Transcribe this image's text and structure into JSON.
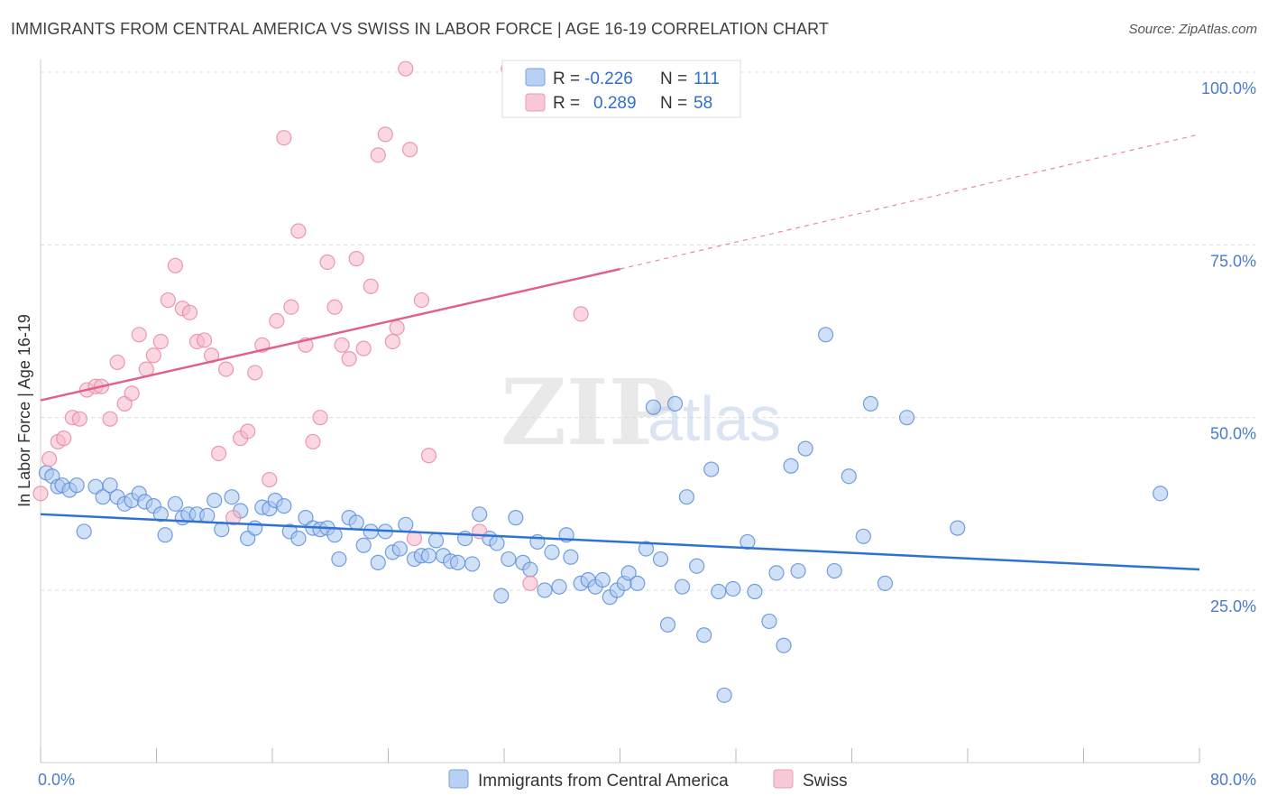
{
  "header": {
    "title": "IMMIGRANTS FROM CENTRAL AMERICA VS SWISS IN LABOR FORCE | AGE 16-19 CORRELATION CHART",
    "source": "Source: ZipAtlas.com"
  },
  "watermark": {
    "zip": "ZIP",
    "atlas": "atlas"
  },
  "chart_data": {
    "type": "scatter",
    "title": "IMMIGRANTS FROM CENTRAL AMERICA VS SWISS IN LABOR FORCE | AGE 16-19 CORRELATION CHART",
    "xlabel": "",
    "ylabel": "In Labor Force | Age 16-19",
    "xlim": [
      0,
      80
    ],
    "ylim": [
      0,
      102
    ],
    "x_tick_labels": {
      "min": "0.0%",
      "max": "80.0%"
    },
    "y_ticks": [
      {
        "value": 25,
        "label": "25.0%"
      },
      {
        "value": 50,
        "label": "50.0%"
      },
      {
        "value": 75,
        "label": "75.0%"
      },
      {
        "value": 100,
        "label": "100.0%"
      }
    ],
    "grid": true,
    "legend_position": "top-center",
    "series": [
      {
        "name": "Immigrants from Central America",
        "color": "#5b8fd9",
        "fill": "#a9c6f0",
        "r_label": "R =",
        "r_value": "-0.226",
        "n_label": "N =",
        "n_value": "111",
        "trend": {
          "x0": 0,
          "y0": 36.0,
          "x1": 80,
          "y1": 28.0,
          "dashed_to": 80
        },
        "points": [
          [
            0.4,
            42.0
          ],
          [
            0.8,
            41.5
          ],
          [
            1.2,
            40.0
          ],
          [
            1.5,
            40.2
          ],
          [
            2.0,
            39.5
          ],
          [
            2.5,
            40.2
          ],
          [
            3.0,
            33.5
          ],
          [
            3.8,
            40.0
          ],
          [
            4.3,
            38.5
          ],
          [
            4.8,
            40.2
          ],
          [
            5.3,
            38.5
          ],
          [
            5.8,
            37.5
          ],
          [
            6.3,
            38.0
          ],
          [
            6.8,
            39.0
          ],
          [
            7.2,
            37.8
          ],
          [
            7.8,
            37.2
          ],
          [
            8.3,
            36.0
          ],
          [
            8.6,
            33.0
          ],
          [
            9.3,
            37.5
          ],
          [
            9.8,
            35.5
          ],
          [
            10.2,
            36.0
          ],
          [
            10.8,
            36.0
          ],
          [
            11.5,
            35.8
          ],
          [
            12.0,
            38.0
          ],
          [
            12.5,
            33.8
          ],
          [
            13.2,
            38.5
          ],
          [
            13.8,
            36.5
          ],
          [
            14.3,
            32.5
          ],
          [
            14.8,
            34.0
          ],
          [
            15.3,
            37.0
          ],
          [
            15.8,
            36.8
          ],
          [
            16.2,
            38.0
          ],
          [
            16.8,
            37.2
          ],
          [
            17.2,
            33.5
          ],
          [
            17.8,
            32.5
          ],
          [
            18.3,
            35.5
          ],
          [
            18.8,
            34.0
          ],
          [
            19.3,
            33.8
          ],
          [
            19.8,
            34.0
          ],
          [
            20.3,
            33.0
          ],
          [
            20.6,
            29.5
          ],
          [
            21.3,
            35.5
          ],
          [
            21.8,
            34.8
          ],
          [
            22.3,
            31.5
          ],
          [
            22.8,
            33.5
          ],
          [
            23.3,
            29.0
          ],
          [
            23.8,
            33.5
          ],
          [
            24.3,
            30.5
          ],
          [
            24.8,
            31.0
          ],
          [
            25.2,
            34.5
          ],
          [
            25.8,
            29.5
          ],
          [
            26.3,
            30.0
          ],
          [
            26.8,
            30.0
          ],
          [
            27.3,
            32.2
          ],
          [
            27.8,
            30.0
          ],
          [
            28.3,
            29.2
          ],
          [
            28.8,
            29.0
          ],
          [
            29.3,
            32.5
          ],
          [
            29.8,
            28.8
          ],
          [
            30.3,
            36.0
          ],
          [
            31.0,
            32.5
          ],
          [
            31.5,
            31.8
          ],
          [
            31.8,
            24.2
          ],
          [
            32.3,
            29.5
          ],
          [
            32.8,
            35.5
          ],
          [
            33.3,
            29.0
          ],
          [
            33.8,
            28.0
          ],
          [
            34.3,
            32.0
          ],
          [
            34.8,
            25.0
          ],
          [
            35.3,
            30.5
          ],
          [
            35.8,
            25.5
          ],
          [
            36.3,
            33.0
          ],
          [
            36.6,
            29.8
          ],
          [
            37.3,
            26.0
          ],
          [
            37.8,
            26.5
          ],
          [
            38.3,
            25.5
          ],
          [
            38.8,
            26.5
          ],
          [
            39.3,
            24.0
          ],
          [
            39.8,
            25.0
          ],
          [
            40.3,
            26.0
          ],
          [
            40.6,
            27.5
          ],
          [
            41.2,
            26.0
          ],
          [
            41.8,
            31.0
          ],
          [
            42.3,
            51.5
          ],
          [
            42.8,
            29.5
          ],
          [
            43.3,
            20.0
          ],
          [
            43.8,
            52.0
          ],
          [
            44.3,
            25.5
          ],
          [
            44.6,
            38.5
          ],
          [
            45.3,
            28.5
          ],
          [
            45.8,
            18.5
          ],
          [
            46.3,
            42.5
          ],
          [
            46.8,
            24.8
          ],
          [
            47.2,
            9.8
          ],
          [
            47.8,
            25.2
          ],
          [
            48.8,
            32.0
          ],
          [
            49.3,
            24.8
          ],
          [
            50.3,
            20.5
          ],
          [
            50.8,
            27.5
          ],
          [
            51.3,
            17.0
          ],
          [
            51.8,
            43.0
          ],
          [
            52.3,
            27.8
          ],
          [
            52.8,
            45.5
          ],
          [
            54.2,
            62.0
          ],
          [
            54.8,
            27.8
          ],
          [
            55.8,
            41.5
          ],
          [
            56.8,
            32.8
          ],
          [
            57.3,
            52.0
          ],
          [
            58.3,
            26.0
          ],
          [
            59.8,
            50.0
          ],
          [
            63.3,
            34.0
          ],
          [
            77.3,
            39.0
          ]
        ]
      },
      {
        "name": "Swiss",
        "color": "#e68aa6",
        "fill": "#f5b6c8",
        "r_label": "R =",
        "r_value": "0.289",
        "n_label": "N =",
        "n_value": "58",
        "trend": {
          "x0": 0,
          "y0": 52.5,
          "x1": 40,
          "y1": 71.5,
          "dashed_to": 80,
          "dashed_y_end": 91.0
        },
        "points": [
          [
            0.0,
            39.0
          ],
          [
            0.6,
            44.0
          ],
          [
            1.2,
            46.5
          ],
          [
            1.6,
            47.0
          ],
          [
            2.2,
            50.0
          ],
          [
            2.7,
            49.8
          ],
          [
            3.2,
            54.0
          ],
          [
            3.8,
            54.5
          ],
          [
            4.2,
            54.5
          ],
          [
            4.8,
            49.8
          ],
          [
            5.3,
            58.0
          ],
          [
            5.8,
            52.0
          ],
          [
            6.3,
            53.5
          ],
          [
            6.8,
            62.0
          ],
          [
            7.3,
            57.0
          ],
          [
            7.8,
            59.0
          ],
          [
            8.3,
            61.0
          ],
          [
            8.8,
            67.0
          ],
          [
            9.3,
            72.0
          ],
          [
            9.8,
            65.8
          ],
          [
            10.3,
            65.2
          ],
          [
            10.8,
            61.0
          ],
          [
            11.3,
            61.2
          ],
          [
            11.8,
            59.0
          ],
          [
            12.3,
            44.8
          ],
          [
            12.8,
            57.0
          ],
          [
            13.3,
            35.5
          ],
          [
            13.8,
            47.0
          ],
          [
            14.3,
            48.0
          ],
          [
            14.8,
            56.5
          ],
          [
            15.3,
            60.5
          ],
          [
            15.8,
            41.0
          ],
          [
            16.3,
            64.0
          ],
          [
            16.8,
            90.5
          ],
          [
            17.3,
            66.0
          ],
          [
            17.8,
            77.0
          ],
          [
            18.3,
            60.5
          ],
          [
            18.8,
            46.5
          ],
          [
            19.3,
            50.0
          ],
          [
            19.8,
            72.5
          ],
          [
            20.3,
            66.0
          ],
          [
            20.8,
            60.5
          ],
          [
            21.3,
            58.5
          ],
          [
            21.8,
            73.0
          ],
          [
            22.3,
            60.0
          ],
          [
            22.8,
            69.0
          ],
          [
            23.3,
            88.0
          ],
          [
            23.8,
            91.0
          ],
          [
            24.3,
            61.0
          ],
          [
            24.6,
            63.0
          ],
          [
            25.2,
            100.5
          ],
          [
            25.5,
            88.8
          ],
          [
            25.8,
            32.5
          ],
          [
            26.3,
            67.0
          ],
          [
            26.8,
            44.5
          ],
          [
            30.3,
            33.5
          ],
          [
            32.3,
            100.5
          ],
          [
            33.8,
            26.0
          ],
          [
            37.3,
            65.0
          ]
        ]
      }
    ]
  }
}
